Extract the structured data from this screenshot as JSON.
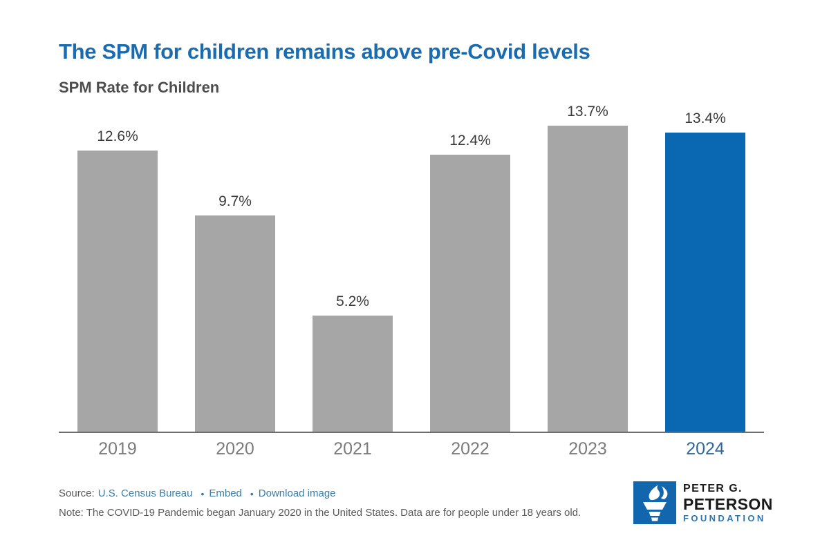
{
  "header": {
    "title": "The SPM for children remains above pre-Covid levels",
    "subtitle": "SPM Rate for Children"
  },
  "chart_data": {
    "type": "bar",
    "categories": [
      "2019",
      "2020",
      "2021",
      "2022",
      "2023",
      "2024"
    ],
    "values": [
      12.6,
      9.7,
      5.2,
      12.4,
      13.7,
      13.4
    ],
    "value_labels": [
      "12.6%",
      "9.7%",
      "5.2%",
      "12.4%",
      "13.7%",
      "13.4%"
    ],
    "title": "SPM Rate for Children",
    "xlabel": "",
    "ylabel": "",
    "ylim": [
      0,
      15
    ],
    "grid": false,
    "legend": "none",
    "highlight_category": "2024",
    "bar_color": "#a6a6a6",
    "highlight_color": "#0a67b1"
  },
  "footer": {
    "source_prefix": "Source:",
    "source_link": "U.S. Census Bureau",
    "bullet": "•",
    "embed_link": "Embed",
    "download_link": "Download image",
    "note": "Note: The COVID-19 Pandemic began January 2020 in the United States. Data are for people under 18 years old."
  },
  "logo": {
    "line1": "PETER G.",
    "line2": "PETERSON",
    "line3": "FOUNDATION",
    "icon": "torch-flame-icon"
  },
  "colors": {
    "title_blue": "#1b6cae",
    "subtitle_gray": "#4d4d4d",
    "bar_gray": "#a6a6a6",
    "highlight_blue": "#0a67b1",
    "axis_gray": "#6e6e6e",
    "year_gray": "#7b7b7b",
    "year_highlight": "#2e689a",
    "link_blue": "#3a7da7",
    "text_gray": "#58595b",
    "logo_blue": "#1166ae",
    "foundation_blue": "#2e75ad"
  }
}
